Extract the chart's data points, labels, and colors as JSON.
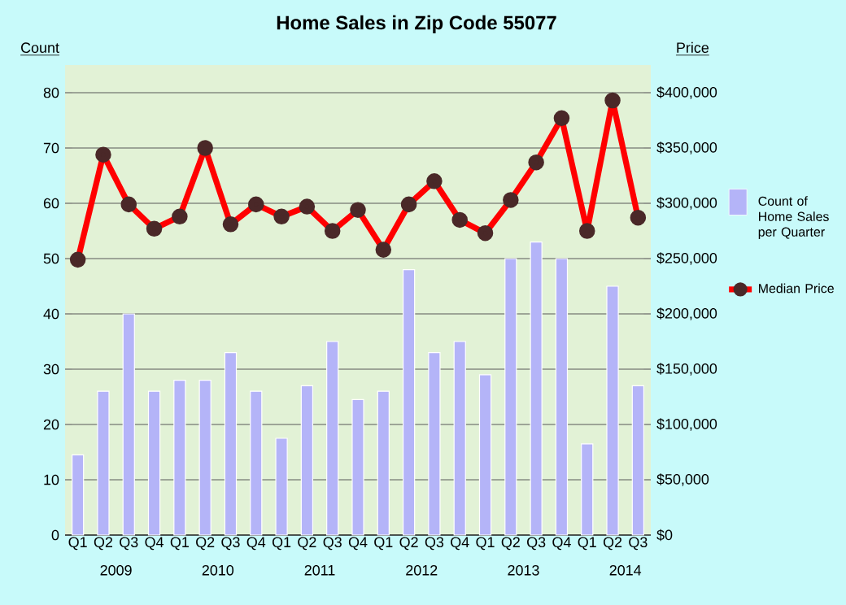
{
  "chart_data": {
    "type": "bar",
    "title": "Home Sales in Zip Code 55077",
    "ylabel": "Count",
    "y2label": "Price",
    "categories": [
      "Q1",
      "Q2",
      "Q3",
      "Q4",
      "Q1",
      "Q2",
      "Q3",
      "Q4",
      "Q1",
      "Q2",
      "Q3",
      "Q4",
      "Q1",
      "Q2",
      "Q3",
      "Q4",
      "Q1",
      "Q2",
      "Q3",
      "Q4",
      "Q1",
      "Q2",
      "Q3"
    ],
    "annotations": [
      "2009",
      "2010",
      "2011",
      "2012",
      "2013",
      "2014"
    ],
    "series": [
      {
        "name": "Count of Home Sales per Quarter",
        "color": "#b4b4f8",
        "values": [
          14.5,
          26,
          40,
          26,
          28,
          28,
          33,
          26,
          17.5,
          27,
          35,
          24.5,
          26,
          48,
          33,
          35,
          29,
          50,
          53,
          50,
          16.5,
          45,
          27
        ]
      },
      {
        "name": "Median Price",
        "type": "line",
        "axis": "y2",
        "color": "#ff0000",
        "values": [
          249000,
          344000,
          299000,
          277000,
          288000,
          350000,
          281000,
          299000,
          288000,
          297000,
          275000,
          294000,
          258000,
          299000,
          320000,
          285000,
          273000,
          303000,
          337000,
          377000,
          275000,
          393000,
          287000
        ]
      }
    ],
    "ylim": [
      0,
      85
    ],
    "yticks": [
      0,
      10,
      20,
      30,
      40,
      50,
      60,
      70,
      80
    ],
    "y2lim": [
      0,
      425000
    ],
    "y2ticks": [
      {
        "value": 0,
        "label": "$0"
      },
      {
        "value": 50000,
        "label": "$50,000"
      },
      {
        "value": 100000,
        "label": "$100,000"
      },
      {
        "value": 150000,
        "label": "$150,000"
      },
      {
        "value": 200000,
        "label": "$200,000"
      },
      {
        "value": 250000,
        "label": "$250,000"
      },
      {
        "value": 300000,
        "label": "$300,000"
      },
      {
        "value": 350000,
        "label": "$350,000"
      },
      {
        "value": 400000,
        "label": "$400,000"
      }
    ],
    "grid": "y",
    "legend": "right",
    "marker": "circle",
    "line_style": "solid"
  }
}
